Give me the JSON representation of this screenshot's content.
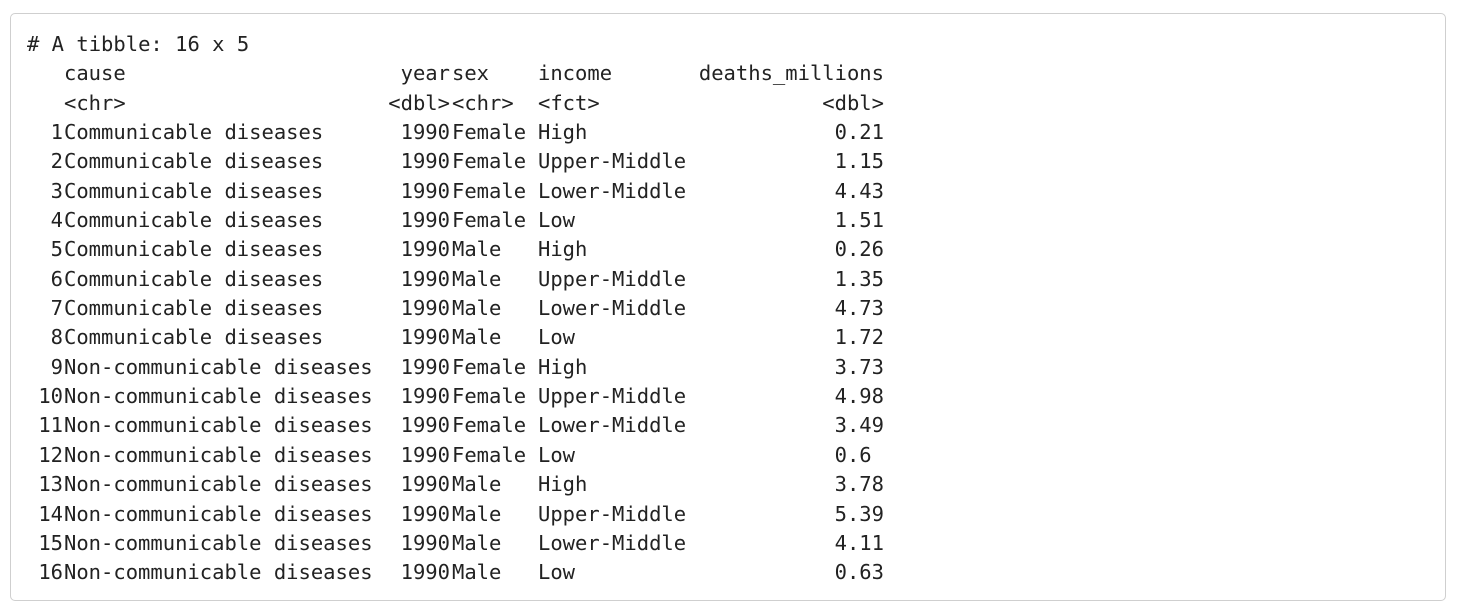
{
  "tibble": {
    "summary": "# A tibble: 16 x 5",
    "columns": [
      "cause",
      "year",
      "sex",
      "income",
      "deaths_millions"
    ],
    "types": [
      "<chr>",
      "<dbl>",
      "<chr>",
      "<fct>",
      "<dbl>"
    ],
    "rows": [
      {
        "idx": "1",
        "cause": "Communicable diseases",
        "year": "1990",
        "sex": "Female",
        "income": "High",
        "deaths": "0.21"
      },
      {
        "idx": "2",
        "cause": "Communicable diseases",
        "year": "1990",
        "sex": "Female",
        "income": "Upper-Middle",
        "deaths": "1.15"
      },
      {
        "idx": "3",
        "cause": "Communicable diseases",
        "year": "1990",
        "sex": "Female",
        "income": "Lower-Middle",
        "deaths": "4.43"
      },
      {
        "idx": "4",
        "cause": "Communicable diseases",
        "year": "1990",
        "sex": "Female",
        "income": "Low",
        "deaths": "1.51"
      },
      {
        "idx": "5",
        "cause": "Communicable diseases",
        "year": "1990",
        "sex": "Male",
        "income": "High",
        "deaths": "0.26"
      },
      {
        "idx": "6",
        "cause": "Communicable diseases",
        "year": "1990",
        "sex": "Male",
        "income": "Upper-Middle",
        "deaths": "1.35"
      },
      {
        "idx": "7",
        "cause": "Communicable diseases",
        "year": "1990",
        "sex": "Male",
        "income": "Lower-Middle",
        "deaths": "4.73"
      },
      {
        "idx": "8",
        "cause": "Communicable diseases",
        "year": "1990",
        "sex": "Male",
        "income": "Low",
        "deaths": "1.72"
      },
      {
        "idx": "9",
        "cause": "Non-communicable diseases",
        "year": "1990",
        "sex": "Female",
        "income": "High",
        "deaths": "3.73"
      },
      {
        "idx": "10",
        "cause": "Non-communicable diseases",
        "year": "1990",
        "sex": "Female",
        "income": "Upper-Middle",
        "deaths": "4.98"
      },
      {
        "idx": "11",
        "cause": "Non-communicable diseases",
        "year": "1990",
        "sex": "Female",
        "income": "Lower-Middle",
        "deaths": "3.49"
      },
      {
        "idx": "12",
        "cause": "Non-communicable diseases",
        "year": "1990",
        "sex": "Female",
        "income": "Low",
        "deaths": "0.6 "
      },
      {
        "idx": "13",
        "cause": "Non-communicable diseases",
        "year": "1990",
        "sex": "Male",
        "income": "High",
        "deaths": "3.78"
      },
      {
        "idx": "14",
        "cause": "Non-communicable diseases",
        "year": "1990",
        "sex": "Male",
        "income": "Upper-Middle",
        "deaths": "5.39"
      },
      {
        "idx": "15",
        "cause": "Non-communicable diseases",
        "year": "1990",
        "sex": "Male",
        "income": "Lower-Middle",
        "deaths": "4.11"
      },
      {
        "idx": "16",
        "cause": "Non-communicable diseases",
        "year": "1990",
        "sex": "Male",
        "income": "Low",
        "deaths": "0.63"
      }
    ]
  }
}
